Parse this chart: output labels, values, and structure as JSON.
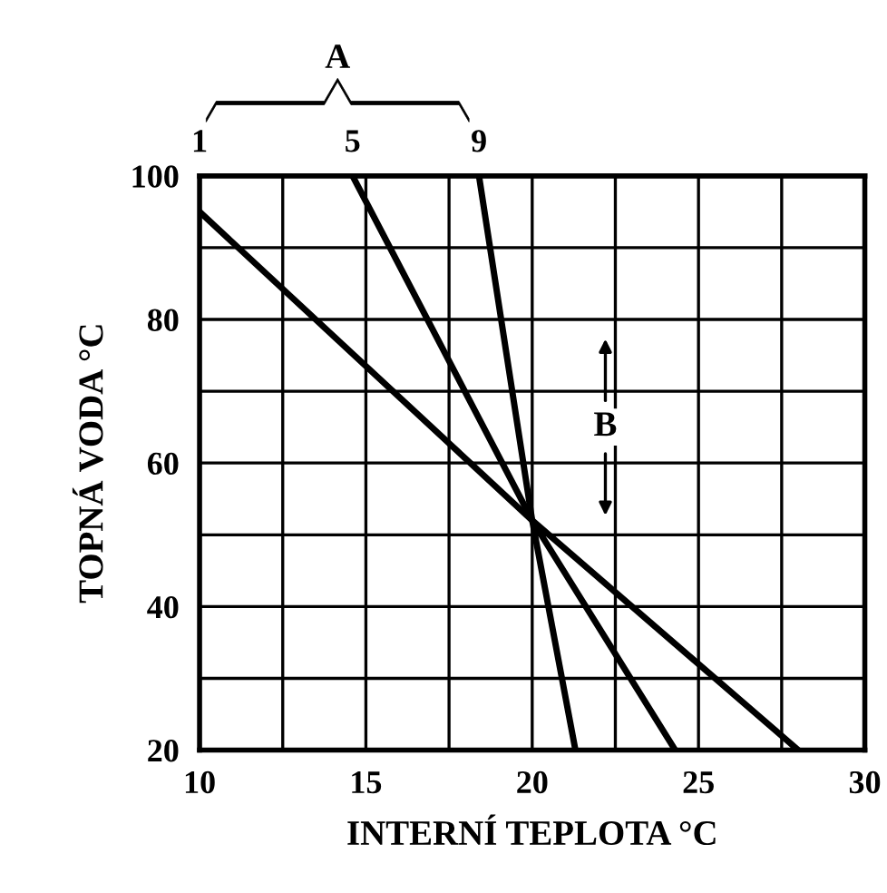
{
  "chart_data": {
    "type": "line",
    "xlabel": "INTERNÍ TEPLOTA °C",
    "ylabel": "TOPNÁ VODA °C",
    "series": [
      {
        "name": "1",
        "color": "#000000",
        "x": [
          10,
          20,
          28
        ],
        "values": [
          95,
          52,
          20
        ]
      },
      {
        "name": "5",
        "color": "#000000",
        "x": [
          14.6,
          20,
          24.3
        ],
        "values": [
          100,
          52,
          20
        ]
      },
      {
        "name": "9",
        "color": "#000000",
        "x": [
          18.4,
          20,
          21.3
        ],
        "values": [
          100,
          52,
          20
        ]
      }
    ],
    "xlim": [
      10,
      30
    ],
    "ylim": [
      20,
      100
    ],
    "xticks": [
      10,
      {
        "value": 12.5,
        "label": null
      },
      15,
      {
        "value": 17.5,
        "label": null
      },
      20,
      {
        "value": 22.5,
        "label": null
      },
      25,
      {
        "value": 27.5,
        "label": null
      },
      30
    ],
    "yticks": [
      20,
      {
        "value": 30,
        "label": null
      },
      40,
      {
        "value": 50,
        "label": null
      },
      60,
      {
        "value": 70,
        "label": null
      },
      80,
      {
        "value": 90,
        "label": null
      },
      100
    ],
    "grid": true,
    "marker": "none",
    "line_style": "solid",
    "annotations": [
      "A",
      {
        "text": "B",
        "x": 22.2,
        "y": 65
      }
    ]
  }
}
